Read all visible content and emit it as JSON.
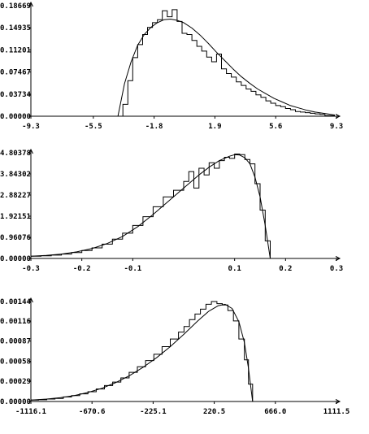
{
  "chart_data": [
    {
      "type": "line",
      "title": "",
      "xlabel": "",
      "ylabel": "",
      "xlim": [
        -9.3,
        9.3
      ],
      "ylim": [
        0.0,
        0.18669
      ],
      "xtick_values": [
        -9.3,
        -5.5,
        -1.8,
        1.9,
        5.6,
        9.3
      ],
      "xtick_labels": [
        "-9.3",
        "-5.5",
        "-1.8",
        "1.9",
        "5.6",
        "9.3"
      ],
      "ytick_values": [
        0.0,
        0.03734,
        0.07467,
        0.11201,
        0.14935,
        0.18669
      ],
      "ytick_labels": [
        "0.00000",
        "0.03734",
        "0.07467",
        "0.11201",
        "0.14935",
        "0.18669"
      ],
      "grid": false,
      "legend": "none",
      "series": [
        {
          "style": "step-histogram",
          "x": [
            -4.0,
            -3.7,
            -3.4,
            -3.1,
            -2.8,
            -2.5,
            -2.2,
            -1.9,
            -1.6,
            -1.3,
            -1.0,
            -0.7,
            -0.4,
            -0.1,
            0.2,
            0.5,
            0.8,
            1.1,
            1.4,
            1.7,
            2.0,
            2.3,
            2.6,
            2.9,
            3.2,
            3.5,
            3.8,
            4.1,
            4.4,
            4.7,
            5.0,
            5.3,
            5.6,
            5.9,
            6.2,
            6.5,
            6.8,
            7.1,
            7.4,
            7.7,
            8.0,
            8.3,
            8.6,
            9.2
          ],
          "y": [
            0.0,
            0.02,
            0.06,
            0.099,
            0.121,
            0.138,
            0.15,
            0.158,
            0.163,
            0.178,
            0.168,
            0.18,
            0.16,
            0.14,
            0.138,
            0.128,
            0.118,
            0.11,
            0.1,
            0.092,
            0.105,
            0.08,
            0.072,
            0.066,
            0.058,
            0.052,
            0.046,
            0.042,
            0.036,
            0.032,
            0.026,
            0.022,
            0.018,
            0.016,
            0.013,
            0.011,
            0.008,
            0.007,
            0.006,
            0.005,
            0.004,
            0.003,
            0.001,
            0.001
          ]
        },
        {
          "style": "smooth",
          "x": [
            -4.0,
            -3.6,
            -3.2,
            -2.8,
            -2.4,
            -2.0,
            -1.6,
            -1.2,
            -0.8,
            -0.4,
            0.0,
            0.5,
            1.0,
            1.5,
            2.0,
            2.5,
            3.0,
            3.5,
            4.0,
            4.5,
            5.0,
            5.5,
            6.0,
            6.5,
            7.0,
            7.5,
            8.0,
            8.5,
            9.2
          ],
          "y": [
            0.0,
            0.055,
            0.092,
            0.12,
            0.138,
            0.15,
            0.158,
            0.163,
            0.164,
            0.162,
            0.158,
            0.149,
            0.137,
            0.123,
            0.108,
            0.094,
            0.08,
            0.067,
            0.056,
            0.046,
            0.038,
            0.03,
            0.024,
            0.018,
            0.014,
            0.01,
            0.007,
            0.005,
            0.002
          ]
        }
      ]
    },
    {
      "type": "line",
      "title": "",
      "xlabel": "",
      "ylabel": "",
      "xlim": [
        -0.3,
        0.3
      ],
      "ylim": [
        0.0,
        4.80378
      ],
      "xtick_values": [
        -0.3,
        -0.2,
        -0.1,
        0.1,
        0.2,
        0.3
      ],
      "xtick_labels": [
        "-0.3",
        "-0.2",
        "-0.1",
        "0.1",
        "0.2",
        "0.3"
      ],
      "ytick_values": [
        0.0,
        0.96076,
        1.92151,
        2.88227,
        3.84302,
        4.80378
      ],
      "ytick_labels": [
        "0.00000",
        "0.96076",
        "1.92151",
        "2.88227",
        "3.84302",
        "4.80378"
      ],
      "grid": false,
      "legend": "none",
      "series": [
        {
          "style": "step-histogram",
          "x": [
            -0.3,
            -0.28,
            -0.26,
            -0.24,
            -0.22,
            -0.2,
            -0.18,
            -0.16,
            -0.14,
            -0.12,
            -0.1,
            -0.08,
            -0.06,
            -0.04,
            -0.02,
            0.0,
            0.01,
            0.02,
            0.03,
            0.04,
            0.05,
            0.06,
            0.07,
            0.08,
            0.09,
            0.1,
            0.11,
            0.12,
            0.13,
            0.14,
            0.15,
            0.16,
            0.17
          ],
          "y": [
            0.1,
            0.12,
            0.15,
            0.2,
            0.27,
            0.36,
            0.48,
            0.65,
            0.88,
            1.15,
            1.5,
            1.9,
            2.35,
            2.8,
            3.1,
            3.5,
            3.95,
            3.2,
            4.1,
            3.8,
            4.35,
            4.1,
            4.45,
            4.6,
            4.55,
            4.75,
            4.72,
            4.5,
            4.3,
            3.4,
            2.2,
            0.8,
            0.0
          ]
        },
        {
          "style": "smooth",
          "x": [
            -0.3,
            -0.27,
            -0.24,
            -0.21,
            -0.18,
            -0.15,
            -0.12,
            -0.09,
            -0.06,
            -0.03,
            0.0,
            0.03,
            0.05,
            0.07,
            0.09,
            0.1,
            0.11,
            0.12,
            0.13,
            0.14,
            0.15,
            0.16,
            0.17
          ],
          "y": [
            0.1,
            0.14,
            0.2,
            0.3,
            0.45,
            0.68,
            1.0,
            1.45,
            2.0,
            2.6,
            3.2,
            3.8,
            4.15,
            4.45,
            4.65,
            4.72,
            4.7,
            4.58,
            4.3,
            3.7,
            2.8,
            1.5,
            0.0
          ]
        }
      ]
    },
    {
      "type": "line",
      "title": "",
      "xlabel": "",
      "ylabel": "",
      "xlim": [
        -1116.1,
        1111.5
      ],
      "ylim": [
        0.0,
        0.00144
      ],
      "xtick_values": [
        -1116.1,
        -670.6,
        -225.1,
        220.5,
        666.0,
        1111.5
      ],
      "xtick_labels": [
        "-1116.1",
        "-670.6",
        "-225.1",
        "220.5",
        "666.0",
        "1111.5"
      ],
      "ytick_values": [
        0.0,
        0.00029,
        0.00058,
        0.00087,
        0.00116,
        0.00144
      ],
      "ytick_labels": [
        "0.00000",
        "0.00029",
        "0.00058",
        "0.00087",
        "0.00116",
        "0.00144"
      ],
      "grid": false,
      "legend": "none",
      "series": [
        {
          "style": "step-histogram",
          "x": [
            -1116,
            -1060,
            -1000,
            -940,
            -880,
            -820,
            -760,
            -700,
            -640,
            -580,
            -520,
            -460,
            -400,
            -340,
            -280,
            -220,
            -160,
            -100,
            -40,
            0,
            40,
            80,
            120,
            160,
            200,
            240,
            280,
            320,
            360,
            400,
            440,
            470,
            500
          ],
          "y": [
            2e-05,
            2.5e-05,
            3.5e-05,
            4.5e-05,
            6.5e-05,
            8.5e-05,
            0.00011,
            0.00014,
            0.00018,
            0.00023,
            0.00028,
            0.00034,
            0.00042,
            0.0005,
            0.00059,
            0.00068,
            0.00079,
            0.0009,
            0.001,
            0.00108,
            0.00118,
            0.00126,
            0.00133,
            0.0014,
            0.00144,
            0.00141,
            0.00139,
            0.00131,
            0.00116,
            0.0009,
            0.0006,
            0.00025,
            0.0
          ]
        },
        {
          "style": "smooth",
          "x": [
            -1116,
            -1000,
            -900,
            -800,
            -700,
            -600,
            -500,
            -400,
            -300,
            -200,
            -100,
            0,
            100,
            180,
            250,
            300,
            350,
            400,
            440,
            470,
            500
          ],
          "y": [
            2e-05,
            3.5e-05,
            5.5e-05,
            8.5e-05,
            0.00013,
            0.00019,
            0.00027,
            0.00037,
            0.00049,
            0.00063,
            0.00079,
            0.00097,
            0.00116,
            0.0013,
            0.00138,
            0.0014,
            0.00134,
            0.00115,
            0.00085,
            0.00048,
            0.0
          ]
        }
      ]
    }
  ]
}
